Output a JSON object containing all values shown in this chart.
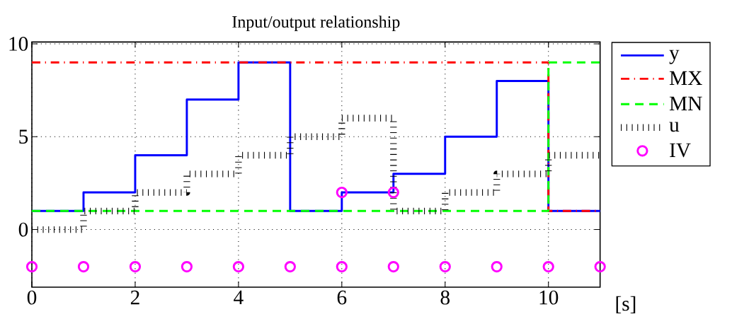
{
  "chart_data": {
    "type": "step",
    "title": "Input/output relationship",
    "xlabel": "[s]",
    "xlim": [
      0,
      11
    ],
    "ylim": [
      -3.1,
      10.1
    ],
    "xticks": [
      0,
      2,
      4,
      6,
      8,
      10
    ],
    "yticks": [
      0,
      5,
      10
    ],
    "grid": true,
    "legend": "top right",
    "series": [
      {
        "name": "y",
        "color": "#0000ff",
        "line_style": "solid",
        "marker": "none",
        "x": [
          0,
          1,
          2,
          3,
          4,
          5,
          6,
          7,
          8,
          9,
          10,
          11
        ],
        "values": [
          1,
          2,
          4,
          7,
          9,
          1,
          2,
          3,
          5,
          8,
          1,
          1
        ]
      },
      {
        "name": "MX",
        "color": "#ff0000",
        "line_style": "dashdot",
        "marker": "none",
        "x": [
          0,
          10,
          11
        ],
        "values": [
          9,
          1,
          1
        ]
      },
      {
        "name": "MN",
        "color": "#00ff00",
        "line_style": "dashed",
        "marker": "none",
        "x": [
          0,
          10,
          11
        ],
        "values": [
          1,
          9,
          9
        ]
      },
      {
        "name": "u",
        "color": "#000000",
        "line_style": "dotted",
        "marker": "none",
        "x": [
          0,
          1,
          2,
          3,
          4,
          5,
          6,
          7,
          8,
          9,
          10,
          11
        ],
        "values": [
          0,
          1,
          2,
          3,
          4,
          5,
          6,
          1,
          2,
          3,
          4,
          4
        ]
      },
      {
        "name": "IV",
        "type": "scatter",
        "color": "#ff00ff",
        "marker": "circle",
        "x": [
          0,
          1,
          2,
          3,
          4,
          5,
          6,
          7,
          8,
          9,
          10,
          11,
          6,
          7
        ],
        "values": [
          -2,
          -2,
          -2,
          -2,
          -2,
          -2,
          -2,
          -2,
          -2,
          -2,
          -2,
          -2,
          2,
          2
        ]
      }
    ]
  }
}
